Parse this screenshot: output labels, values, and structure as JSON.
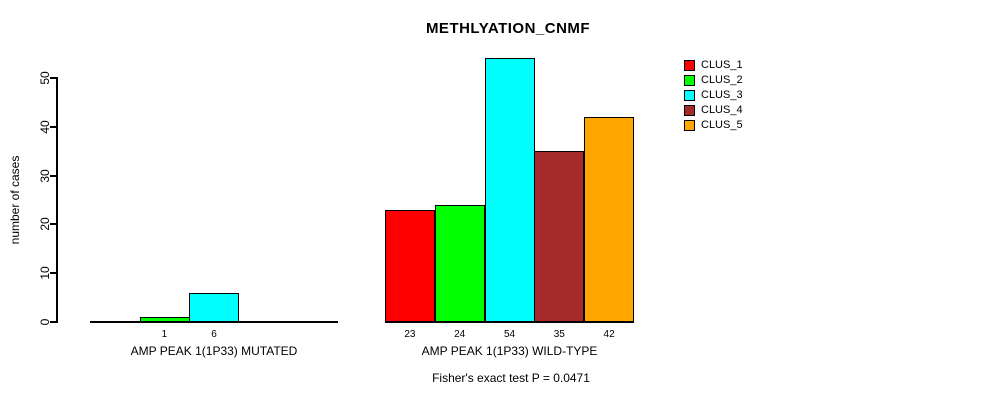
{
  "chart_data": {
    "type": "bar",
    "title": "METHLYATION_CNMF",
    "ylabel": "number of cases",
    "ylim": [
      0,
      50
    ],
    "yticks": [
      0,
      10,
      20,
      30,
      40,
      50
    ],
    "categories": [
      "AMP PEAK 1(1P33) MUTATED",
      "AMP PEAK 1(1P33) WILD-TYPE"
    ],
    "series": [
      {
        "name": "CLUS_1",
        "color": "#ff0000",
        "values": [
          0,
          23
        ]
      },
      {
        "name": "CLUS_2",
        "color": "#00ff00",
        "values": [
          1,
          24
        ]
      },
      {
        "name": "CLUS_3",
        "color": "#00ffff",
        "values": [
          6,
          54
        ]
      },
      {
        "name": "CLUS_4",
        "color": "#a52a2a",
        "values": [
          0,
          35
        ]
      },
      {
        "name": "CLUS_5",
        "color": "#ffa500",
        "values": [
          0,
          42
        ]
      }
    ],
    "annotation": "Fisher's exact test P = 0.0471",
    "legend_position": "top-right",
    "legend": [
      "CLUS_1",
      "CLUS_2",
      "CLUS_3",
      "CLUS_4",
      "CLUS_5"
    ],
    "grid": false,
    "background": "#ffffff",
    "text_color": "#000000"
  }
}
